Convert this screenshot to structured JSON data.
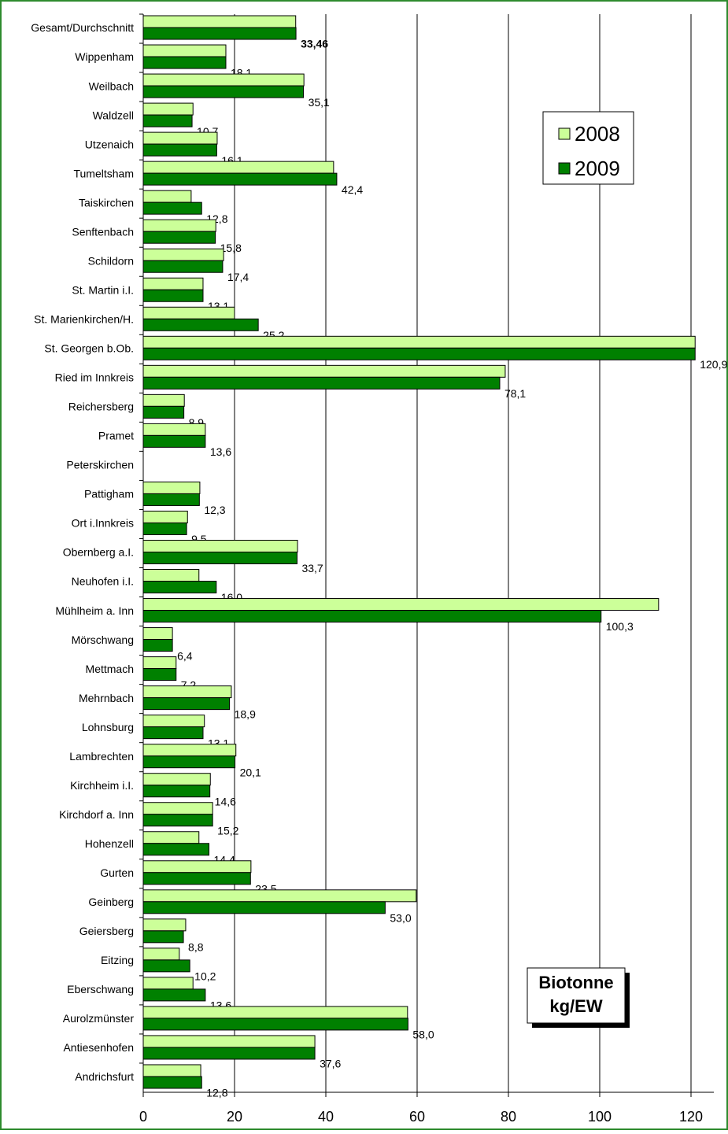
{
  "chart_data": {
    "type": "hbar",
    "annotation": "Biotonne kg/EW",
    "categories": [
      "Gesamt/Durchschnitt",
      "Wippenham",
      "Weilbach",
      "Waldzell",
      "Utzenaich",
      "Tumeltsham",
      "Taiskirchen",
      "Senftenbach",
      "Schildorn",
      "St. Martin i.I.",
      "St. Marienkirchen/H.",
      "St. Georgen b.Ob.",
      "Ried im Innkreis",
      "Reichersberg",
      "Pramet",
      "Peterskirchen",
      "Pattigham",
      "Ort i.Innkreis",
      "Obernberg a.I.",
      "Neuhofen i.I.",
      "Mühlheim a. Inn",
      "Mörschwang",
      "Mettmach",
      "Mehrnbach",
      "Lohnsburg",
      "Lambrechten",
      "Kirchheim i.I.",
      "Kirchdorf a. Inn",
      "Hohenzell",
      "Gurten",
      "Geinberg",
      "Geiersberg",
      "Eitzing",
      "Eberschwang",
      "Aurolzmünster",
      "Antiesenhofen",
      "Andrichsfurt"
    ],
    "series": [
      {
        "name": "2008",
        "color": "#ccff99",
        "values": [
          33.4,
          18.1,
          35.2,
          10.9,
          16.2,
          41.7,
          10.5,
          15.9,
          17.6,
          13.1,
          20.0,
          120.9,
          79.3,
          9.0,
          13.6,
          null,
          12.4,
          9.7,
          33.8,
          12.2,
          112.9,
          6.4,
          7.2,
          19.3,
          13.4,
          20.3,
          14.7,
          15.2,
          12.2,
          23.6,
          59.8,
          9.3,
          7.9,
          10.9,
          57.9,
          37.6,
          12.6
        ]
      },
      {
        "name": "2009",
        "color": "#008000",
        "values": [
          33.46,
          18.1,
          35.1,
          10.7,
          16.1,
          42.4,
          12.8,
          15.8,
          17.4,
          13.1,
          25.2,
          120.9,
          78.1,
          8.9,
          13.6,
          null,
          12.3,
          9.5,
          33.7,
          16.0,
          100.3,
          6.4,
          7.2,
          18.9,
          13.1,
          20.1,
          14.6,
          15.2,
          14.4,
          23.5,
          53.0,
          8.8,
          10.2,
          13.6,
          58.0,
          37.6,
          12.8
        ],
        "value_labels": [
          "33,46",
          "18,1",
          "35,1",
          "10,7",
          "16,1",
          "42,4",
          "12,8",
          "15,8",
          "17,4",
          "13,1",
          "25,2",
          "120,9",
          "78,1",
          "8,9",
          "13,6",
          null,
          "12,3",
          "9,5",
          "33,7",
          "16,0",
          "100,3",
          "6,4",
          "7,2",
          "18,9",
          "13,1",
          "20,1",
          "14,6",
          "15,2",
          "14,4",
          "23,5",
          "53,0",
          "8,8",
          "10,2",
          "13,6",
          "58,0",
          "37,6",
          "12,8"
        ]
      }
    ],
    "xlim": [
      0,
      125
    ],
    "xticks": [
      0,
      20,
      40,
      60,
      80,
      100,
      120
    ],
    "grid": true,
    "legend": "top-right"
  }
}
